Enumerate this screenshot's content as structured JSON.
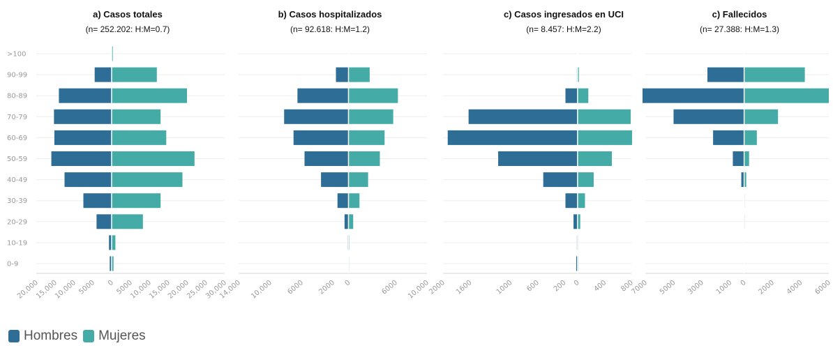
{
  "colors": {
    "hombres": "#2e6e96",
    "mujeres": "#45aba7"
  },
  "legend": {
    "hombres": "Hombres",
    "mujeres": "Mujeres"
  },
  "chart_data": {
    "type": "bar",
    "orientation": "horizontal-diverging",
    "categories": [
      ">100",
      "90-99",
      "80-89",
      "70-79",
      "60-69",
      "50-59",
      "40-49",
      "30-39",
      "20-29",
      "10-19",
      "0-9"
    ],
    "panels": [
      {
        "title": "a) Casos totales",
        "subtitle": "(n= 252.202: H:M=0.7)",
        "xlim": [
          -20000,
          30000
        ],
        "ticks": [
          "20,000",
          "15,000",
          "10,000",
          "5000",
          "0",
          "5000",
          "10,000",
          "15,000",
          "20,000",
          "25,000",
          "30,000"
        ],
        "series": [
          {
            "name": "Hombres",
            "values": [
              0,
              4500,
              14000,
              15300,
              15200,
              16000,
              12500,
              7500,
              4000,
              700,
              500
            ]
          },
          {
            "name": "Mujeres",
            "values": [
              300,
              12000,
              20000,
              13000,
              14500,
              22000,
              18800,
              13000,
              8300,
              1000,
              500
            ]
          }
        ]
      },
      {
        "title": "b) Casos hospitalizados",
        "subtitle": "(n= 92.618: H:M=1.2)",
        "xlim": [
          -14000,
          10000
        ],
        "ticks": [
          "14,000",
          "10,000",
          "6000",
          "2000",
          "0",
          "6000",
          "10,000"
        ],
        "series": [
          {
            "name": "Hombres",
            "values": [
              0,
              1600,
              6500,
              8200,
              7000,
              5600,
              3500,
              1400,
              500,
              80,
              40
            ]
          },
          {
            "name": "Mujeres",
            "values": [
              0,
              2700,
              6300,
              5700,
              4600,
              4000,
              2500,
              1400,
              600,
              100,
              40
            ]
          }
        ]
      },
      {
        "title": "c) Casos ingresados en UCI",
        "subtitle": "(n= 8.457: H:M=2.2)",
        "xlim": [
          -2000,
          800
        ],
        "ticks": [
          "2000",
          "1600",
          "1000",
          "600",
          "200",
          "0",
          "400",
          "800"
        ],
        "series": [
          {
            "name": "Hombres",
            "values": [
              0,
              10,
              180,
              1620,
              1930,
              1180,
              510,
              180,
              60,
              10,
              20
            ]
          },
          {
            "name": "Mujeres",
            "values": [
              0,
              20,
              160,
              790,
              810,
              510,
              240,
              110,
              40,
              5,
              10
            ]
          }
        ]
      },
      {
        "title": "c) Fallecidos",
        "subtitle": "(n= 27.388: H:M=1.3)",
        "xlim": [
          -7000,
          6000
        ],
        "ticks": [
          "7000",
          "5000",
          "3000",
          "1000",
          "0",
          "2000",
          "4000",
          "6000"
        ],
        "series": [
          {
            "name": "Hombres",
            "values": [
              0,
              2600,
              7200,
              5000,
              2200,
              800,
              200,
              20,
              5,
              0,
              0
            ]
          },
          {
            "name": "Mujeres",
            "values": [
              0,
              4300,
              6000,
              2400,
              900,
              350,
              150,
              30,
              10,
              0,
              0
            ]
          }
        ]
      }
    ]
  }
}
